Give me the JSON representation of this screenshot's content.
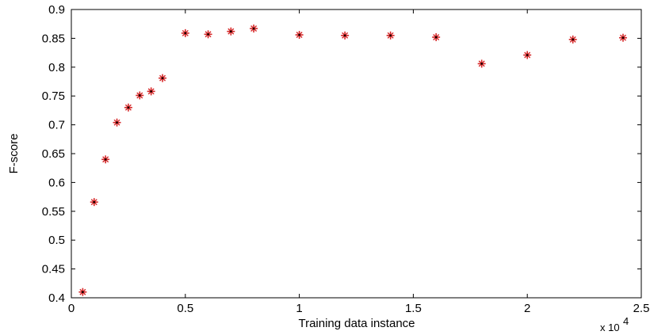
{
  "chart_data": {
    "type": "scatter",
    "title": "",
    "xlabel": "Training data instance",
    "ylabel": "F-score",
    "x_multiplier_label": "x 10",
    "x_multiplier_exponent": "4",
    "xlim": [
      0,
      2.5
    ],
    "ylim": [
      0.4,
      0.9
    ],
    "xticks": [
      "0",
      "0.5",
      "1",
      "1.5",
      "2",
      "2.5"
    ],
    "yticks": [
      "0.4",
      "0.45",
      "0.5",
      "0.55",
      "0.6",
      "0.65",
      "0.7",
      "0.75",
      "0.8",
      "0.85",
      "0.9"
    ],
    "grid": false,
    "marker": "*",
    "marker_color": "#d62728",
    "marker_edge_color": "#000000",
    "series": [
      {
        "x": [
          0.05,
          0.1,
          0.15,
          0.2,
          0.25,
          0.3,
          0.35,
          0.4,
          0.5,
          0.6,
          0.7,
          0.8,
          1.0,
          1.2,
          1.4,
          1.6,
          1.8,
          2.0,
          2.2,
          2.42
        ],
        "y": [
          0.41,
          0.566,
          0.64,
          0.704,
          0.73,
          0.751,
          0.758,
          0.781,
          0.859,
          0.857,
          0.862,
          0.867,
          0.856,
          0.855,
          0.855,
          0.852,
          0.806,
          0.821,
          0.848,
          0.851
        ]
      }
    ]
  }
}
